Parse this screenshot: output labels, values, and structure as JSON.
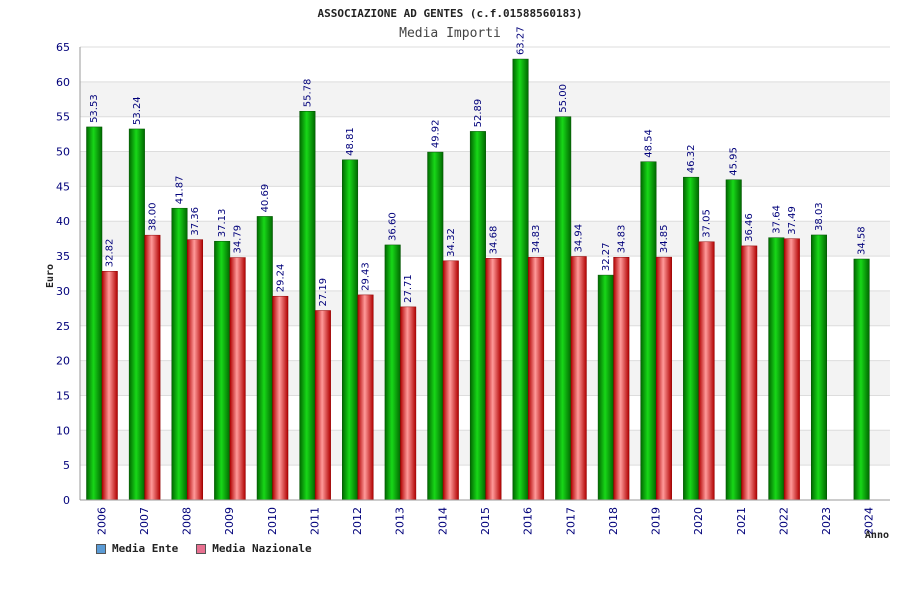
{
  "chart_data": {
    "type": "bar",
    "title": "ASSOCIAZIONE AD GENTES (c.f.01588560183)",
    "subtitle": "Media Importi",
    "xlabel": "Anno",
    "ylabel": "Euro",
    "ylim": [
      0,
      65
    ],
    "yticks": [
      "0",
      "5",
      "10",
      "15",
      "20",
      "25",
      "30",
      "35",
      "40",
      "45",
      "50",
      "55",
      "60",
      "65"
    ],
    "grid": true,
    "legend_position": "bottom-left",
    "categories": [
      "2006",
      "2007",
      "2008",
      "2009",
      "2010",
      "2011",
      "2012",
      "2013",
      "2014",
      "2015",
      "2016",
      "2017",
      "2018",
      "2019",
      "2020",
      "2021",
      "2022",
      "2023",
      "2024"
    ],
    "series": [
      {
        "name": "Media Ente",
        "color": "#00b000",
        "legend_color": "#5b9bd5",
        "values": [
          53.53,
          53.24,
          41.87,
          37.13,
          40.69,
          55.78,
          48.81,
          36.6,
          49.92,
          52.89,
          63.27,
          55.0,
          32.27,
          48.54,
          46.32,
          45.95,
          37.64,
          38.03,
          34.58
        ],
        "labels": [
          "53.53",
          "53.24",
          "41.87",
          "37.13",
          "40.69",
          "55.78",
          "48.81",
          "36.60",
          "49.92",
          "52.89",
          "63.27",
          "55.00",
          "32.27",
          "48.54",
          "46.32",
          "45.95",
          "37.64",
          "38.03",
          "34.58"
        ]
      },
      {
        "name": "Media Nazionale",
        "color": "#e83030",
        "legend_color": "#e87090",
        "values": [
          32.82,
          38.0,
          37.36,
          34.79,
          29.24,
          27.19,
          29.43,
          27.71,
          34.32,
          34.68,
          34.83,
          34.94,
          34.83,
          34.85,
          37.05,
          36.46,
          37.49,
          null,
          null
        ],
        "labels": [
          "32.82",
          "38.00",
          "37.36",
          "34.79",
          "29.24",
          "27.19",
          "29.43",
          "27.71",
          "34.32",
          "34.68",
          "34.83",
          "34.94",
          "34.83",
          "34.85",
          "37.05",
          "36.46",
          "37.49",
          null,
          null
        ]
      }
    ]
  }
}
